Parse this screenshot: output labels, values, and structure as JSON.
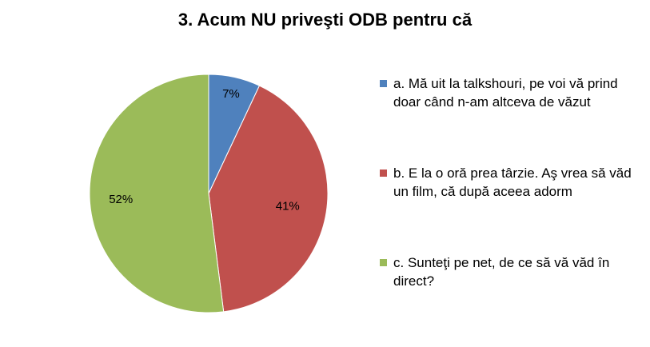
{
  "chart_data": {
    "type": "pie",
    "title": "3. Acum NU priveşti ODB pentru că",
    "slices": [
      {
        "key": "a",
        "label": "a. Mă uit la talkshouri, pe voi vă prind doar când n-am altceva de văzut",
        "value": 7,
        "value_label": "7%",
        "color": "#4F81BD"
      },
      {
        "key": "b",
        "label": "b. E la o oră prea târzie. Aş vrea să văd un film, că după aceea adorm",
        "value": 41,
        "value_label": "41%",
        "color": "#C0504D"
      },
      {
        "key": "c",
        "label": "c. Sunteţi pe net, de ce să vă văd în direct?",
        "value": 52,
        "value_label": "52%",
        "color": "#9BBB59"
      }
    ],
    "legend_position": "right"
  }
}
